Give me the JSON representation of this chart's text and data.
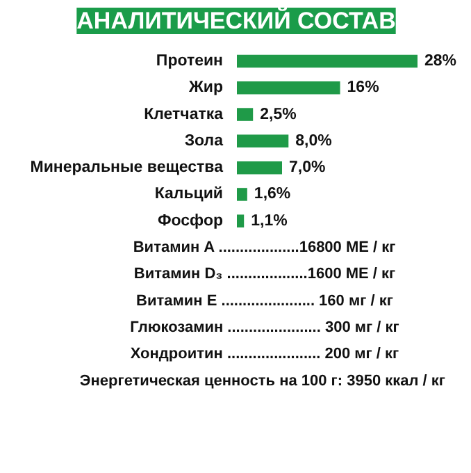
{
  "chart_data": {
    "type": "bar",
    "orientation": "horizontal",
    "title": "АНАЛИТИЧЕСКИЙ СОСТАВ",
    "categories": [
      "Протеин",
      "Жир",
      "Клетчатка",
      "Зола",
      "Минеральные вещества",
      "Кальций",
      "Фосфор"
    ],
    "values": [
      28,
      16,
      2.5,
      8.0,
      7.0,
      1.6,
      1.1
    ],
    "value_labels": [
      "28%",
      "16%",
      "2,5%",
      "8,0%",
      "7,0%",
      "1,6%",
      "1,1%"
    ],
    "color": "#1f9a48",
    "annotations": [
      "Витамин A ...................16800 МЕ / кг",
      "Витамин D₃ ...................1600 МЕ / кг",
      "Витамин E ...................... 160 мг / кг",
      "Глюкозамин ...................... 300 мг / кг",
      "Хондроитин ...................... 200 мг / кг",
      "Энергетическая ценность на 100 г:  3950 ккал / кг"
    ]
  }
}
